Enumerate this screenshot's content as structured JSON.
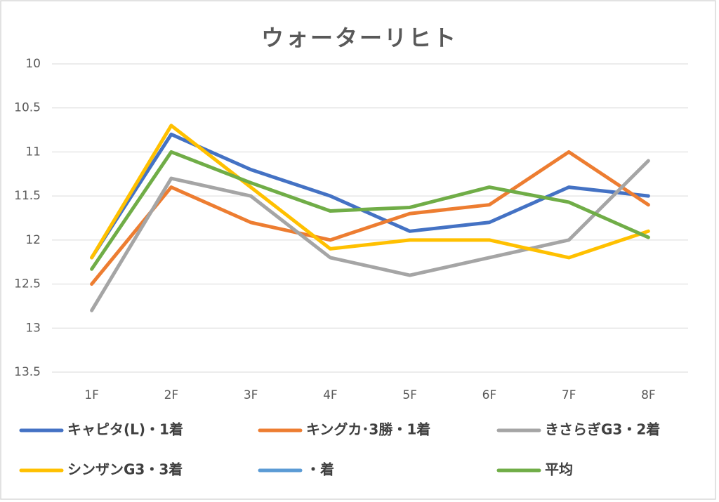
{
  "chart_data": {
    "type": "line",
    "title": "ウォーターリヒト",
    "categories": [
      "1F",
      "2F",
      "3F",
      "4F",
      "5F",
      "6F",
      "7F",
      "8F"
    ],
    "series": [
      {
        "name": "キャピタ(L)・1着",
        "color": "#4472c4",
        "values": [
          12.2,
          10.8,
          11.2,
          11.5,
          11.9,
          11.8,
          11.4,
          11.5
        ]
      },
      {
        "name": "キングカ･3勝・1着",
        "color": "#ed7d31",
        "values": [
          12.5,
          11.4,
          11.8,
          12.0,
          11.7,
          11.6,
          11.0,
          11.6
        ]
      },
      {
        "name": "きさらぎG3・2着",
        "color": "#a5a5a5",
        "values": [
          12.8,
          11.3,
          11.5,
          12.2,
          12.4,
          12.2,
          12.0,
          11.1
        ]
      },
      {
        "name": "シンザンG3・3着",
        "color": "#ffc000",
        "values": [
          12.2,
          10.7,
          11.4,
          12.1,
          12.0,
          12.0,
          12.2,
          11.9
        ]
      },
      {
        "name": "・着",
        "color": "#5b9bd5",
        "values": [
          null,
          null,
          null,
          null,
          null,
          null,
          null,
          null
        ]
      },
      {
        "name": "平均",
        "color": "#70ad47",
        "values": [
          12.33,
          11.0,
          11.35,
          11.67,
          11.63,
          11.4,
          11.57,
          11.97
        ]
      }
    ],
    "ylim": [
      10,
      13.5
    ],
    "y_reversed": true,
    "yticks": [
      10,
      10.5,
      11,
      11.5,
      12,
      12.5,
      13,
      13.5
    ],
    "grid": true,
    "legend": "bottom"
  }
}
